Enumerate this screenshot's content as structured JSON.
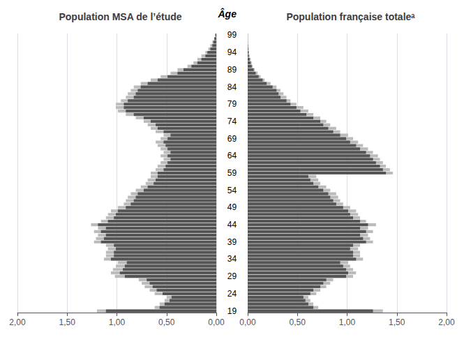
{
  "chart_data": [
    {
      "type": "bar",
      "orientation": "horizontal",
      "title": "Population MSA de l’étude",
      "ylabel": "Âge",
      "categories": [
        "19",
        null,
        null,
        null,
        null,
        "24",
        null,
        null,
        null,
        null,
        "29",
        null,
        null,
        null,
        null,
        "34",
        null,
        null,
        null,
        null,
        "39",
        null,
        null,
        null,
        null,
        "44",
        null,
        null,
        null,
        null,
        "49",
        null,
        null,
        null,
        null,
        "54",
        null,
        null,
        null,
        null,
        "59",
        null,
        null,
        null,
        null,
        "64",
        null,
        null,
        null,
        null,
        "69",
        null,
        null,
        null,
        null,
        "74",
        null,
        null,
        null,
        null,
        "79",
        null,
        null,
        null,
        null,
        "84",
        null,
        null,
        null,
        null,
        "89",
        null,
        null,
        null,
        null,
        "94",
        null,
        null,
        null,
        null,
        "99"
      ],
      "series": [
        {
          "color": "#bbbbbb",
          "values": [
            1.2,
            0.62,
            0.57,
            0.52,
            0.5,
            0.62,
            0.67,
            0.72,
            0.75,
            0.78,
            1.02,
            1.06,
            1.04,
            1.01,
            0.99,
            1.13,
            1.11,
            1.11,
            1.09,
            1.11,
            1.23,
            1.21,
            1.19,
            1.23,
            1.19,
            1.26,
            1.16,
            1.11,
            1.09,
            1.06,
            0.99,
            0.93,
            0.91,
            0.89,
            0.86,
            0.81,
            0.76,
            0.71,
            0.69,
            0.66,
            0.66,
            0.61,
            0.59,
            0.56,
            0.53,
            0.56,
            0.53,
            0.56,
            0.59,
            0.61,
            0.56,
            0.53,
            0.61,
            0.66,
            0.69,
            0.73,
            0.81,
            0.91,
            0.99,
            1.01,
            1.01,
            0.96,
            0.91,
            0.89,
            0.86,
            0.83,
            0.76,
            0.66,
            0.56,
            0.46,
            0.39,
            0.29,
            0.23,
            0.19,
            0.15,
            0.11,
            0.08,
            0.06,
            0.04,
            0.02,
            0.01
          ]
        },
        {
          "color": "#555555",
          "values": [
            1.11,
            0.57,
            0.52,
            0.47,
            0.45,
            0.54,
            0.6,
            0.64,
            0.67,
            0.7,
            0.92,
            0.97,
            0.94,
            0.92,
            0.9,
            1.06,
            1.03,
            1.03,
            1.01,
            1.03,
            1.16,
            1.13,
            1.11,
            1.16,
            1.11,
            1.19,
            1.09,
            1.03,
            1.01,
            0.99,
            0.91,
            0.86,
            0.83,
            0.81,
            0.79,
            0.73,
            0.69,
            0.63,
            0.61,
            0.59,
            0.59,
            0.53,
            0.51,
            0.49,
            0.46,
            0.49,
            0.46,
            0.49,
            0.51,
            0.53,
            0.49,
            0.46,
            0.53,
            0.59,
            0.61,
            0.66,
            0.73,
            0.83,
            0.91,
            0.93,
            0.93,
            0.89,
            0.83,
            0.81,
            0.79,
            0.76,
            0.69,
            0.59,
            0.49,
            0.39,
            0.33,
            0.25,
            0.19,
            0.15,
            0.11,
            0.09,
            0.06,
            0.04,
            0.03,
            0.02,
            0.01
          ]
        }
      ],
      "xlim": [
        2.0,
        0.0
      ],
      "xticks": [
        {
          "value": 2.0,
          "label": "2,00"
        },
        {
          "value": 1.5,
          "label": "1,50"
        },
        {
          "value": 1.0,
          "label": "1,00"
        },
        {
          "value": 0.5,
          "label": "0,50"
        },
        {
          "value": 0.0,
          "label": "0,00"
        }
      ],
      "grid": true
    },
    {
      "type": "bar",
      "orientation": "horizontal",
      "title": "Population française totaleᵃ",
      "categories": [
        "19",
        null,
        null,
        null,
        null,
        "24",
        null,
        null,
        null,
        null,
        "29",
        null,
        null,
        null,
        null,
        "34",
        null,
        null,
        null,
        null,
        "39",
        null,
        null,
        null,
        null,
        "44",
        null,
        null,
        null,
        null,
        "49",
        null,
        null,
        null,
        null,
        "54",
        null,
        null,
        null,
        null,
        "59",
        null,
        null,
        null,
        null,
        "64",
        null,
        null,
        null,
        null,
        "69",
        null,
        null,
        null,
        null,
        "74",
        null,
        null,
        null,
        null,
        "79",
        null,
        null,
        null,
        null,
        "84",
        null,
        null,
        null,
        null,
        "89",
        null,
        null,
        null,
        null,
        "94",
        null,
        null,
        null,
        null,
        "99"
      ],
      "series": [
        {
          "color": "#bbbbbb",
          "values": [
            1.36,
            0.71,
            0.66,
            0.63,
            0.61,
            0.69,
            0.73,
            0.79,
            0.83,
            0.86,
            1.06,
            1.09,
            1.06,
            1.03,
            1.01,
            1.16,
            1.13,
            1.13,
            1.11,
            1.13,
            1.26,
            1.23,
            1.21,
            1.26,
            1.21,
            1.29,
            1.19,
            1.13,
            1.11,
            1.09,
            1.03,
            0.96,
            0.93,
            0.91,
            0.89,
            0.83,
            0.79,
            0.73,
            0.71,
            0.69,
            1.46,
            1.43,
            1.39,
            1.36,
            1.33,
            1.31,
            1.26,
            1.21,
            1.16,
            1.11,
            1.06,
            1.01,
            0.93,
            0.89,
            0.83,
            0.79,
            0.73,
            0.66,
            0.61,
            0.56,
            0.49,
            0.43,
            0.39,
            0.36,
            0.33,
            0.29,
            0.23,
            0.17,
            0.13,
            0.1,
            0.07,
            0.05,
            0.04,
            0.03,
            0.02,
            0.01,
            0.01,
            0.005,
            0.003,
            0.001,
            0.001
          ]
        },
        {
          "color": "#555555",
          "values": [
            1.26,
            0.66,
            0.61,
            0.58,
            0.56,
            0.63,
            0.66,
            0.73,
            0.76,
            0.79,
            0.99,
            1.01,
            0.99,
            0.96,
            0.93,
            1.09,
            1.06,
            1.06,
            1.03,
            1.06,
            1.19,
            1.16,
            1.13,
            1.19,
            1.13,
            1.21,
            1.13,
            1.06,
            1.03,
            1.01,
            0.96,
            0.89,
            0.86,
            0.83,
            0.81,
            0.76,
            0.71,
            0.66,
            0.63,
            0.61,
            1.39,
            1.36,
            1.33,
            1.29,
            1.26,
            1.23,
            1.19,
            1.13,
            1.09,
            1.03,
            0.99,
            0.93,
            0.86,
            0.81,
            0.76,
            0.73,
            0.66,
            0.59,
            0.53,
            0.49,
            0.43,
            0.39,
            0.33,
            0.31,
            0.29,
            0.25,
            0.19,
            0.15,
            0.11,
            0.08,
            0.06,
            0.04,
            0.03,
            0.02,
            0.01,
            0.01,
            0.005,
            0.003,
            0.001,
            0.001,
            0.001
          ]
        }
      ],
      "xlim": [
        0.0,
        2.0
      ],
      "xticks": [
        {
          "value": 0.0,
          "label": "0,00"
        },
        {
          "value": 0.5,
          "label": "0,50"
        },
        {
          "value": 1.0,
          "label": "1,00"
        },
        {
          "value": 1.5,
          "label": "1,50"
        },
        {
          "value": 2.0,
          "label": "2,00"
        }
      ],
      "grid": true
    }
  ]
}
